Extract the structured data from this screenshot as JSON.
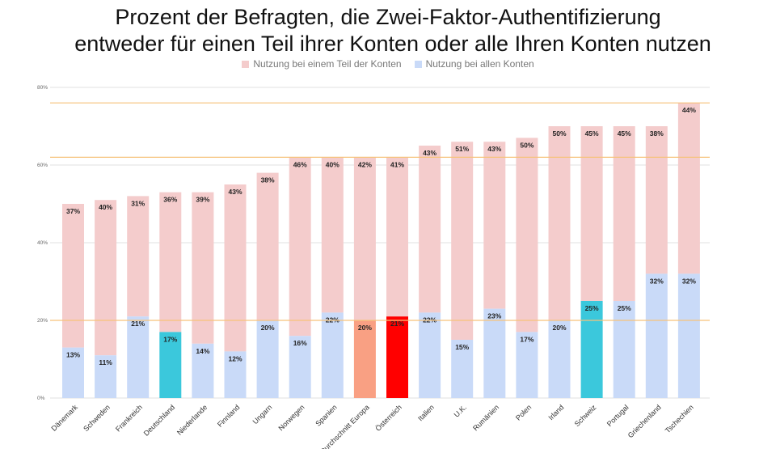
{
  "title_line1": "Prozent der Befragten, die Zwei-Faktor-Authentifizierung",
  "title_line2": "entweder für einen Teil ihrer Konten oder alle Ihren Konten nutzen",
  "colors": {
    "partial": "#f4cccc",
    "all": "#c9daf8",
    "highlight_teal": "#3bc8dc",
    "highlight_salmon": "#f9a083",
    "highlight_red": "#ff0000",
    "guide_line": "#f6c27a",
    "grid": "#e0e0e0"
  },
  "chart_data": {
    "type": "bar",
    "stacked": true,
    "categories": [
      "Dänemark",
      "Schweden",
      "Frankreich",
      "Deutschland",
      "Niederlande",
      "Finnland",
      "Ungarn",
      "Norwegen",
      "Spanien",
      "Durchschnitt Europa",
      "Österreich",
      "Italien",
      "U.K.",
      "Rumänien",
      "Polen",
      "Irland",
      "Schweiz",
      "Portugal",
      "Griechenland",
      "Tschechien"
    ],
    "series": [
      {
        "name": "Nutzung bei allen Konten",
        "values": [
          13,
          11,
          21,
          17,
          14,
          12,
          20,
          16,
          22,
          20,
          21,
          22,
          15,
          23,
          17,
          20,
          25,
          25,
          32,
          32
        ],
        "labels": [
          "13%",
          "11%",
          "21%",
          "17%",
          "14%",
          "12%",
          "20%",
          "16%",
          "22%",
          "20%",
          "21%",
          "22%",
          "15%",
          "23%",
          "17%",
          "20%",
          "25%",
          "25%",
          "32%",
          "32%"
        ]
      },
      {
        "name": "Nutzung bei einem Teil der Konten",
        "values": [
          37,
          40,
          31,
          36,
          39,
          43,
          38,
          46,
          40,
          42,
          41,
          43,
          51,
          43,
          50,
          50,
          45,
          45,
          38,
          44
        ],
        "labels": [
          "37%",
          "40%",
          "31%",
          "36%",
          "39%",
          "43%",
          "38%",
          "46%",
          "40%",
          "42%",
          "41%",
          "43%",
          "51%",
          "43%",
          "50%",
          "50%",
          "45%",
          "45%",
          "38%",
          "44%"
        ]
      }
    ],
    "highlights": {
      "Deutschland": "teal",
      "Schweiz": "teal",
      "Durchschnitt Europa": "salmon",
      "Österreich": "red"
    },
    "guide_lines": [
      20,
      62,
      76
    ],
    "ylim": [
      0,
      80
    ],
    "yticks": [
      0,
      20,
      40,
      60,
      80
    ],
    "ytick_labels": [
      "0%",
      "20%",
      "40%",
      "60%",
      "80%"
    ],
    "grid": true,
    "legend_position": "top"
  }
}
